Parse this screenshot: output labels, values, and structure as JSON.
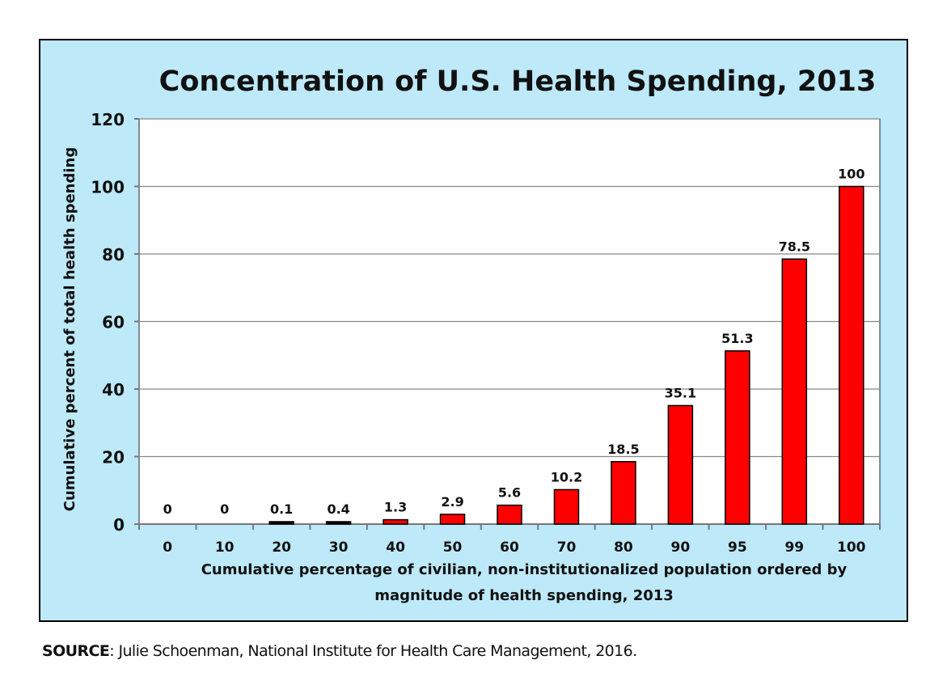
{
  "chart_data": {
    "type": "bar",
    "title": "Concentration of U.S. Health Spending, 2013",
    "xlabel_line1": "Cumulative percentage of civilian, non-institutionalized population ordered by",
    "xlabel_line2": "magnitude of health spending, 2013",
    "ylabel": "Cumulative percent of total health spending",
    "categories": [
      "0",
      "10",
      "20",
      "30",
      "40",
      "50",
      "60",
      "70",
      "80",
      "90",
      "95",
      "99",
      "100"
    ],
    "values": [
      0,
      0,
      0.1,
      0.4,
      1.3,
      2.9,
      5.6,
      10.2,
      18.5,
      35.1,
      51.3,
      78.5,
      100
    ],
    "data_labels": [
      "0",
      "0",
      "0.1",
      "0.4",
      "1.3",
      "2.9",
      "5.6",
      "10.2",
      "18.5",
      "35.1",
      "51.3",
      "78.5",
      "100"
    ],
    "ylim": [
      0,
      120
    ],
    "yticks": [
      0,
      20,
      40,
      60,
      80,
      100,
      120
    ],
    "grid": true,
    "legend": "none",
    "colors": {
      "bar": "#ff0000",
      "bar_outline": "#000000",
      "background": "#bde9f9",
      "plot": "#ffffff"
    }
  },
  "source": {
    "label": "SOURCE",
    "text": ": Julie Schoenman, National Institute for Health Care Management, 2016."
  }
}
